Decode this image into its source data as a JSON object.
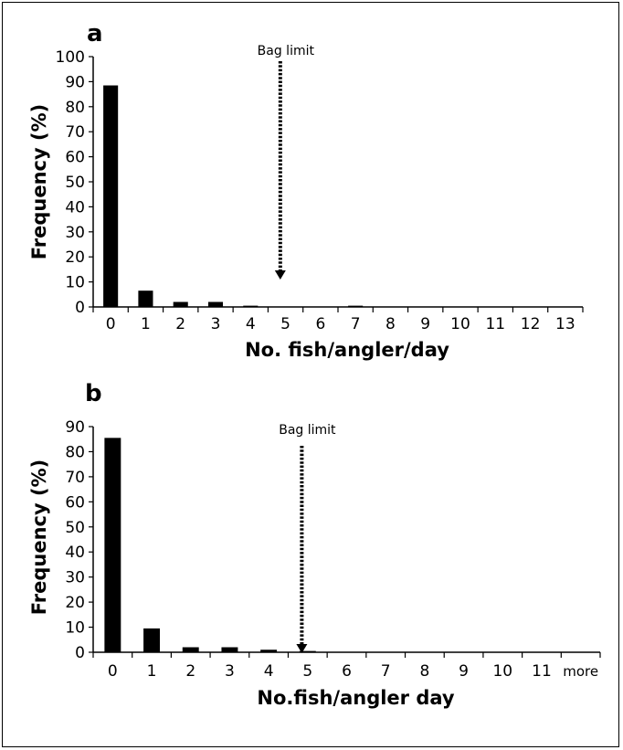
{
  "chart_data": [
    {
      "type": "bar",
      "panel_label": "a",
      "categories": [
        "0",
        "1",
        "2",
        "3",
        "4",
        "5",
        "6",
        "7",
        "8",
        "9",
        "10",
        "11",
        "12",
        "13"
      ],
      "values": [
        88.5,
        6.5,
        2,
        2,
        0.5,
        0,
        0,
        0.5,
        0,
        0,
        0,
        0,
        0,
        0
      ],
      "xlabel": "No. fish/angler/day",
      "ylabel": "Frequency (%)",
      "ylim": [
        0,
        100
      ],
      "yticks": [
        0,
        10,
        20,
        30,
        40,
        50,
        60,
        70,
        80,
        90,
        100
      ],
      "annotation": {
        "text": "Bag limit",
        "x_category": "5"
      },
      "bar_color": "#000000"
    },
    {
      "type": "bar",
      "panel_label": "b",
      "categories": [
        "0",
        "1",
        "2",
        "3",
        "4",
        "5",
        "6",
        "7",
        "8",
        "9",
        "10",
        "11",
        "more"
      ],
      "values": [
        85.5,
        9.5,
        2,
        2,
        1,
        0.5,
        0,
        0,
        0,
        0,
        0,
        0,
        0
      ],
      "xlabel": "No.fish/angler day",
      "ylabel": "Frequency (%)",
      "ylim": [
        0,
        90
      ],
      "yticks": [
        0,
        10,
        20,
        30,
        40,
        50,
        60,
        70,
        80,
        90
      ],
      "annotation": {
        "text": "Bag limit",
        "x_category": "5"
      },
      "bar_color": "#000000"
    }
  ]
}
